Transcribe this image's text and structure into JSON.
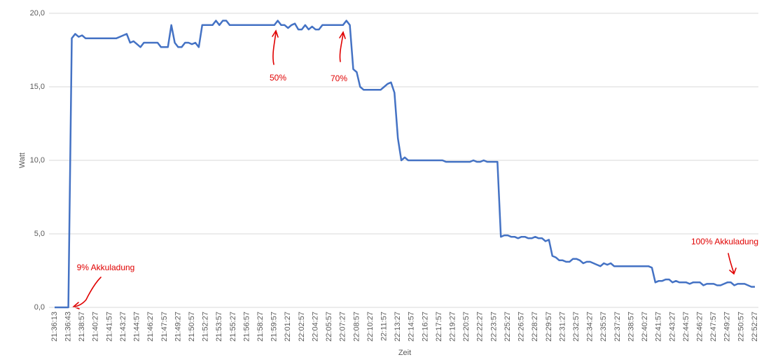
{
  "chart_data": {
    "type": "line",
    "xlabel": "Zeit",
    "ylabel": "Watt",
    "color": "#4472c4",
    "grid": true,
    "ylim": [
      0,
      20
    ],
    "yticks": [
      {
        "value": 0,
        "label": "0,0"
      },
      {
        "value": 5,
        "label": "5,0"
      },
      {
        "value": 10,
        "label": "10,0"
      },
      {
        "value": 15,
        "label": "15,0"
      },
      {
        "value": 20,
        "label": "20,0"
      }
    ],
    "annotations": [
      "50%",
      "70%",
      "9% Akkuladung",
      "100% Akkuladung"
    ],
    "categories": [
      "21:36:13",
      null,
      null,
      null,
      "21:36:43",
      null,
      null,
      null,
      "21:38:57",
      null,
      null,
      null,
      "21:40:27",
      null,
      null,
      null,
      "21:41:57",
      null,
      null,
      null,
      "21:43:27",
      null,
      null,
      null,
      "21:44:57",
      null,
      null,
      null,
      "21:46:27",
      null,
      null,
      null,
      "21:47:57",
      null,
      null,
      null,
      "21:49:27",
      null,
      null,
      null,
      "21:50:57",
      null,
      null,
      null,
      "21:52:27",
      null,
      null,
      null,
      "21:53:57",
      null,
      null,
      null,
      "21:55:27",
      null,
      null,
      null,
      "21:56:57",
      null,
      null,
      null,
      "21:58:27",
      null,
      null,
      null,
      "21:59:57",
      null,
      null,
      null,
      "22:01:27",
      null,
      null,
      null,
      "22:02:57",
      null,
      null,
      null,
      "22:04:27",
      null,
      null,
      null,
      "22:05:57",
      null,
      null,
      null,
      "22:07:27",
      null,
      null,
      null,
      "22:08:57",
      null,
      null,
      null,
      "22:10:27",
      null,
      null,
      null,
      "22:11:57",
      null,
      null,
      null,
      "22:13:27",
      null,
      null,
      null,
      "22:14:57",
      null,
      null,
      null,
      "22:16:27",
      null,
      null,
      null,
      "22:17:57",
      null,
      null,
      null,
      "22:19:27",
      null,
      null,
      null,
      "22:20:57",
      null,
      null,
      null,
      "22:22:27",
      null,
      null,
      null,
      "22:23:57",
      null,
      null,
      null,
      "22:25:27",
      null,
      null,
      null,
      "22:26:57",
      null,
      null,
      null,
      "22:28:27",
      null,
      null,
      null,
      "22:29:57",
      null,
      null,
      null,
      "22:31:27",
      null,
      null,
      null,
      "22:32:57",
      null,
      null,
      null,
      "22:34:27",
      null,
      null,
      null,
      "22:35:57",
      null,
      null,
      null,
      "22:37:27",
      null,
      null,
      null,
      "22:38:57",
      null,
      null,
      null,
      "22:40:27",
      null,
      null,
      null,
      "22:41:57",
      null,
      null,
      null,
      "22:43:27",
      null,
      null,
      null,
      "22:44:57",
      null,
      null,
      null,
      "22:46:27",
      null,
      null,
      null,
      "22:47:57",
      null,
      null,
      null,
      "22:49:27",
      null,
      null,
      null,
      "22:50:57",
      null,
      null,
      null,
      "22:52:27"
    ],
    "values": [
      0,
      0,
      0,
      0,
      0,
      18.3,
      18.6,
      18.4,
      18.5,
      18.3,
      18.3,
      18.3,
      18.3,
      18.3,
      18.3,
      18.3,
      18.3,
      18.3,
      18.3,
      18.4,
      18.5,
      18.6,
      18.0,
      18.1,
      17.9,
      17.7,
      18.0,
      18.0,
      18.0,
      18.0,
      18.0,
      17.7,
      17.7,
      17.7,
      19.2,
      18.0,
      17.7,
      17.7,
      18.0,
      18.0,
      17.9,
      18.0,
      17.7,
      19.2,
      19.2,
      19.2,
      19.2,
      19.5,
      19.2,
      19.5,
      19.5,
      19.2,
      19.2,
      19.2,
      19.2,
      19.2,
      19.2,
      19.2,
      19.2,
      19.2,
      19.2,
      19.2,
      19.2,
      19.2,
      19.2,
      19.5,
      19.2,
      19.2,
      19.0,
      19.2,
      19.3,
      18.9,
      18.9,
      19.2,
      18.9,
      19.1,
      18.9,
      18.9,
      19.2,
      19.2,
      19.2,
      19.2,
      19.2,
      19.2,
      19.2,
      19.5,
      19.2,
      16.2,
      16.0,
      15.0,
      14.8,
      14.8,
      14.8,
      14.8,
      14.8,
      14.8,
      15.0,
      15.2,
      15.3,
      14.6,
      11.5,
      10.0,
      10.2,
      10.0,
      10.0,
      10.0,
      10.0,
      10.0,
      10.0,
      10.0,
      10.0,
      10.0,
      10.0,
      10.0,
      9.9,
      9.9,
      9.9,
      9.9,
      9.9,
      9.9,
      9.9,
      9.9,
      10.0,
      9.9,
      9.9,
      10.0,
      9.9,
      9.9,
      9.9,
      9.9,
      4.8,
      4.9,
      4.9,
      4.8,
      4.8,
      4.7,
      4.8,
      4.8,
      4.7,
      4.7,
      4.8,
      4.7,
      4.7,
      4.5,
      4.6,
      3.5,
      3.4,
      3.2,
      3.2,
      3.1,
      3.1,
      3.3,
      3.3,
      3.2,
      3.0,
      3.1,
      3.1,
      3.0,
      2.9,
      2.8,
      3.0,
      2.9,
      3.0,
      2.8,
      2.8,
      2.8,
      2.8,
      2.8,
      2.8,
      2.8,
      2.8,
      2.8,
      2.8,
      2.8,
      2.7,
      1.7,
      1.8,
      1.8,
      1.9,
      1.9,
      1.7,
      1.8,
      1.7,
      1.7,
      1.7,
      1.6,
      1.7,
      1.7,
      1.7,
      1.5,
      1.6,
      1.6,
      1.6,
      1.5,
      1.5,
      1.6,
      1.7,
      1.7,
      1.5,
      1.6,
      1.6,
      1.6,
      1.5,
      1.4,
      1.4
    ]
  }
}
